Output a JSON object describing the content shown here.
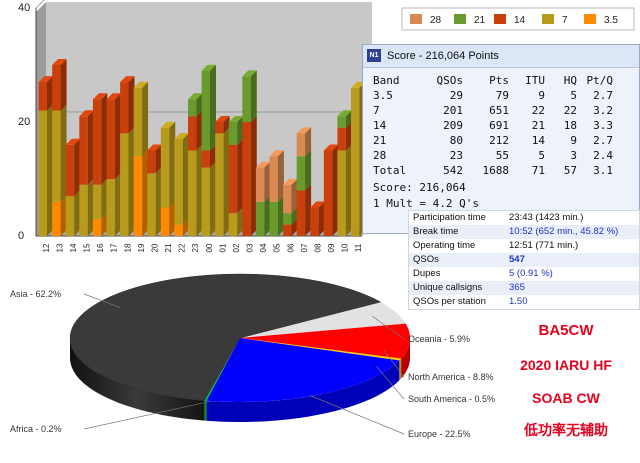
{
  "chart_data": [
    {
      "type": "bar",
      "title": "",
      "xlabel": "",
      "ylabel": "",
      "ylim": [
        0,
        40
      ],
      "y_ticks": [
        "0",
        "20",
        "40"
      ],
      "stacked": true,
      "categories": [
        "12",
        "13",
        "14",
        "15",
        "16",
        "17",
        "18",
        "19",
        "20",
        "21",
        "22",
        "23",
        "00",
        "01",
        "02",
        "03",
        "04",
        "05",
        "06",
        "07",
        "08",
        "09",
        "10",
        "11"
      ],
      "series": [
        {
          "name": "28",
          "color": "#d98a52",
          "values": [
            0,
            0,
            0,
            0,
            0,
            0,
            0,
            0,
            0,
            0,
            0,
            0,
            0,
            0,
            0,
            0,
            6,
            8,
            5,
            4,
            0,
            0,
            0,
            0
          ]
        },
        {
          "name": "21",
          "color": "#6a9a2c",
          "values": [
            0,
            0,
            0,
            0,
            0,
            0,
            0,
            0,
            0,
            0,
            0,
            3,
            14,
            0,
            4,
            8,
            6,
            6,
            2,
            6,
            0,
            0,
            2,
            0
          ]
        },
        {
          "name": "14",
          "color": "#c9400c",
          "values": [
            5,
            8,
            9,
            12,
            15,
            14,
            9,
            0,
            4,
            0,
            0,
            6,
            3,
            2,
            12,
            20,
            0,
            0,
            2,
            8,
            5,
            15,
            4,
            0
          ]
        },
        {
          "name": "7",
          "color": "#b89a1c",
          "values": [
            22,
            16,
            7,
            9,
            6,
            10,
            18,
            12,
            11,
            14,
            15,
            15,
            12,
            18,
            4,
            0,
            0,
            0,
            0,
            0,
            0,
            0,
            15,
            26
          ]
        },
        {
          "name": "3.5",
          "color": "#ff8a00",
          "values": [
            0,
            6,
            0,
            0,
            3,
            0,
            0,
            14,
            0,
            5,
            2,
            0,
            0,
            0,
            0,
            0,
            0,
            0,
            0,
            0,
            0,
            0,
            0,
            0
          ]
        }
      ],
      "legend": "top-right"
    },
    {
      "type": "pie",
      "title": "",
      "slices": [
        {
          "label": "Asia - 62.2%",
          "name": "Asia",
          "value": 62.2,
          "color": "#3a3a3a"
        },
        {
          "label": "Oceania - 5.9%",
          "name": "Oceania",
          "value": 5.9,
          "color": "#e2e2e2"
        },
        {
          "label": "North America - 8.8%",
          "name": "North America",
          "value": 8.8,
          "color": "#ff0000"
        },
        {
          "label": "South America - 0.5%",
          "name": "South America",
          "value": 0.5,
          "color": "#ffd000"
        },
        {
          "label": "Europe - 22.5%",
          "name": "Europe",
          "value": 22.5,
          "color": "#0000ff"
        },
        {
          "label": "Africa - 0.2%",
          "name": "Africa",
          "value": 0.2,
          "color": "#00cc33"
        }
      ]
    }
  ],
  "score_window": {
    "title": "Score - 216,064 Points",
    "icon_text": "N1",
    "headers": [
      "Band",
      "QSOs",
      "Pts",
      "ITU",
      "HQ",
      "Pt/Q"
    ],
    "rows": [
      [
        "3.5",
        "29",
        "79",
        "9",
        "5",
        "2.7"
      ],
      [
        "7",
        "201",
        "651",
        "22",
        "22",
        "3.2"
      ],
      [
        "14",
        "209",
        "691",
        "21",
        "18",
        "3.3"
      ],
      [
        "21",
        "80",
        "212",
        "14",
        "9",
        "2.7"
      ],
      [
        "28",
        "23",
        "55",
        "5",
        "3",
        "2.4"
      ],
      [
        "Total",
        "542",
        "1688",
        "71",
        "57",
        "3.1"
      ]
    ],
    "score_line": "Score: 216,064",
    "mult_line": "1 Mult = 4.2 Q's"
  },
  "stats": [
    {
      "label": "Participation time",
      "value": "23:43 (1423 min.)",
      "color": "dark"
    },
    {
      "label": "Break time",
      "value": "10:52 (652 min., 45.82 %)",
      "color": "blue"
    },
    {
      "label": "Operating time",
      "value": "12:51 (771 min.)",
      "color": "dark"
    },
    {
      "label": "QSOs",
      "value": "547",
      "color": "blue-bold"
    },
    {
      "label": "Dupes",
      "value": "5 (0.91 %)",
      "color": "blue"
    },
    {
      "label": "Unique callsigns",
      "value": "365",
      "color": "blue"
    },
    {
      "label": "QSOs per station",
      "value": "1.50",
      "color": "blue"
    }
  ],
  "annotation": {
    "callsign": "BA5CW",
    "contest": "2020 IARU HF",
    "category": "SOAB CW",
    "power": "低功率无辅助"
  }
}
